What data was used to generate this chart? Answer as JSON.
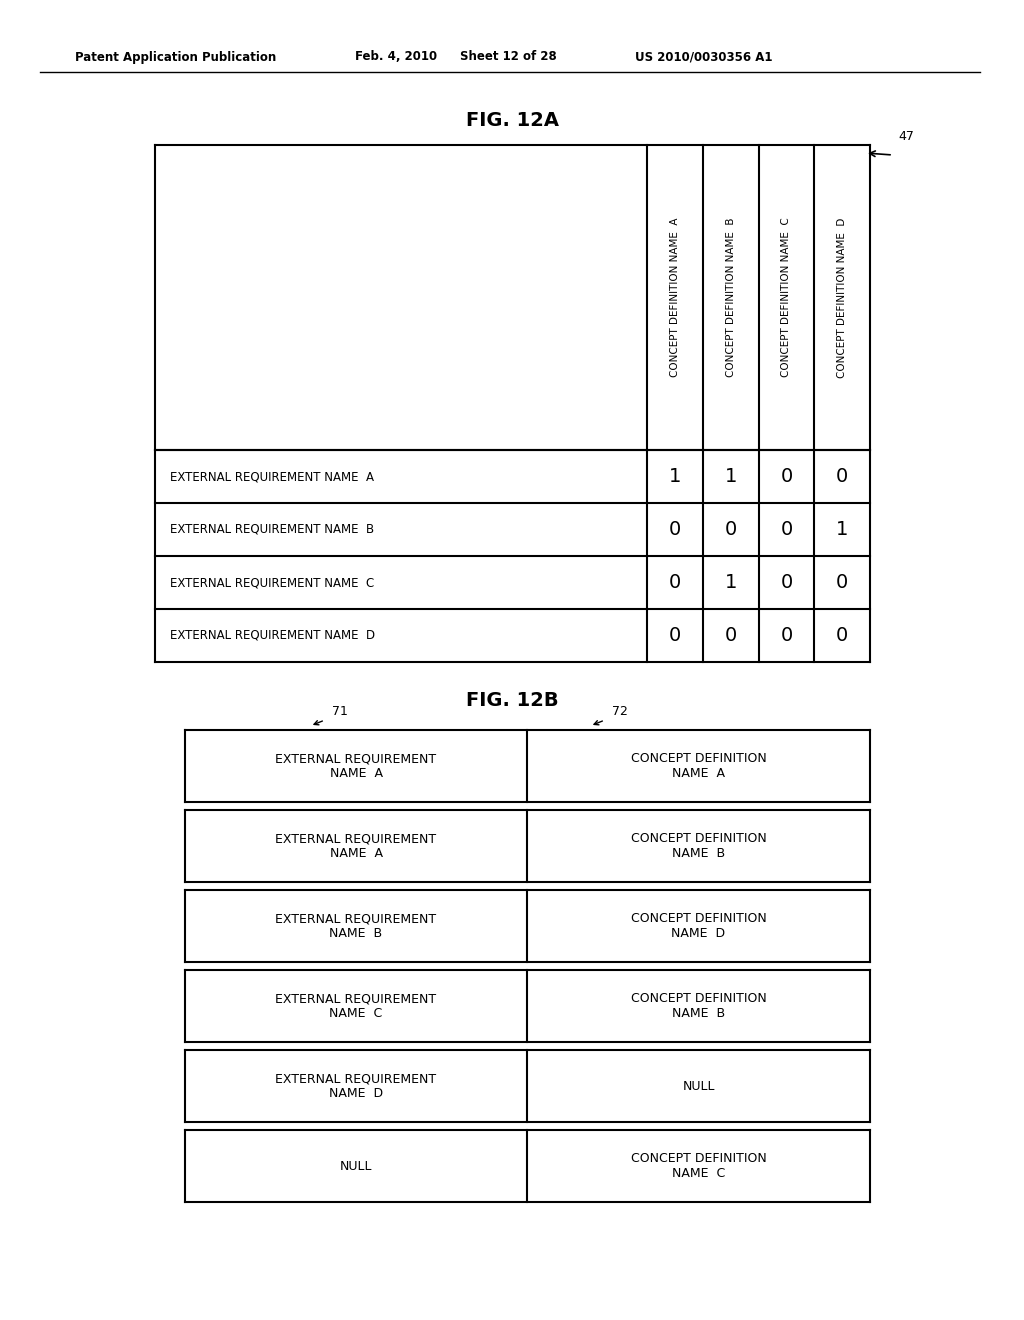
{
  "header_text": "Patent Application Publication",
  "header_date": "Feb. 4, 2010",
  "header_sheet": "Sheet 12 of 28",
  "header_patent": "US 2010/0030356 A1",
  "fig12a_title": "FIG. 12A",
  "fig12b_title": "FIG. 12B",
  "concept_cols": [
    "CONCEPT DEFINITION NAME  A",
    "CONCEPT DEFINITION NAME  B",
    "CONCEPT DEFINITION NAME  C",
    "CONCEPT DEFINITION NAME  D"
  ],
  "row_labels": [
    "EXTERNAL REQUIREMENT NAME  A",
    "EXTERNAL REQUIREMENT NAME  B",
    "EXTERNAL REQUIREMENT NAME  C",
    "EXTERNAL REQUIREMENT NAME  D"
  ],
  "matrix": [
    [
      1,
      1,
      0,
      0
    ],
    [
      0,
      0,
      0,
      1
    ],
    [
      0,
      1,
      0,
      0
    ],
    [
      0,
      0,
      0,
      0
    ]
  ],
  "ref47": "47",
  "fig12b_rows": [
    [
      "EXTERNAL REQUIREMENT\nNAME  A",
      "CONCEPT DEFINITION\nNAME  A"
    ],
    [
      "EXTERNAL REQUIREMENT\nNAME  A",
      "CONCEPT DEFINITION\nNAME  B"
    ],
    [
      "EXTERNAL REQUIREMENT\nNAME  B",
      "CONCEPT DEFINITION\nNAME  D"
    ],
    [
      "EXTERNAL REQUIREMENT\nNAME  C",
      "CONCEPT DEFINITION\nNAME  B"
    ],
    [
      "EXTERNAL REQUIREMENT\nNAME  D",
      "NULL"
    ],
    [
      "NULL",
      "CONCEPT DEFINITION\nNAME  C"
    ]
  ],
  "ref71": "71",
  "ref72": "72"
}
